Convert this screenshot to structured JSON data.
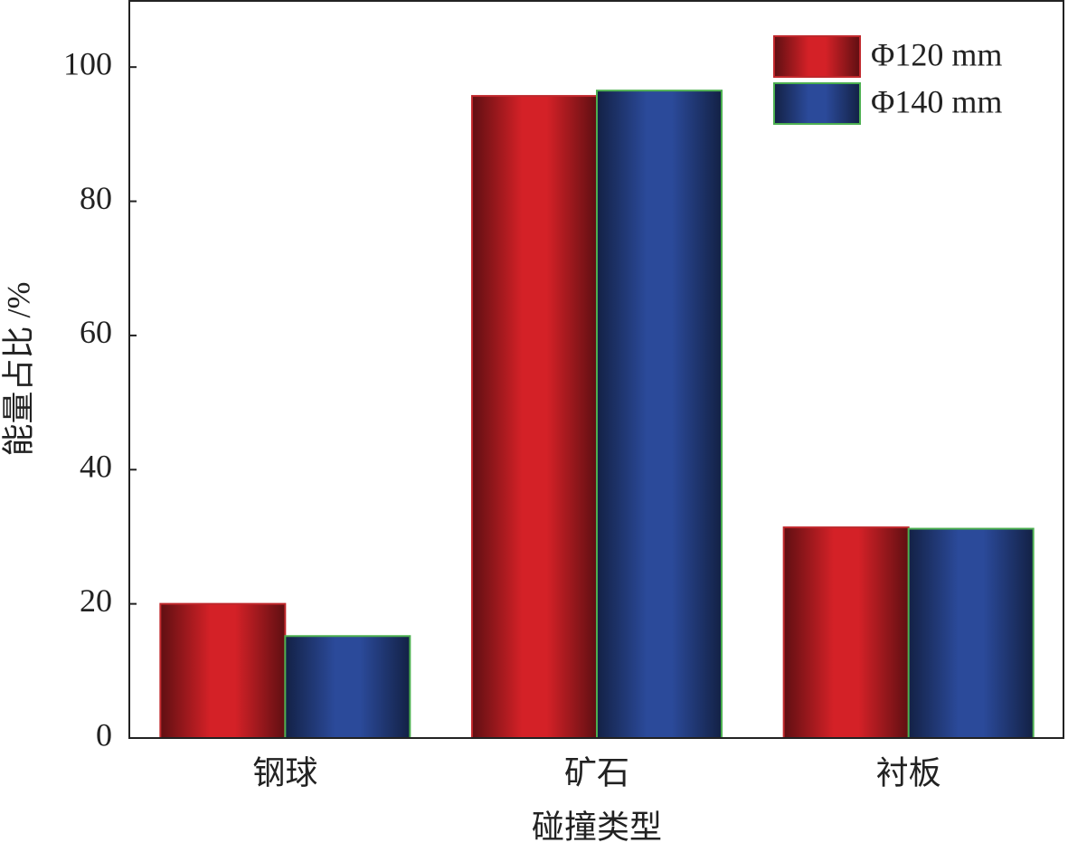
{
  "chart_data": {
    "type": "bar",
    "x_label": "碰撞类型",
    "y_label": "能量占比 /%",
    "categories": [
      "钢球",
      "矿石",
      "衬板"
    ],
    "series": [
      {
        "name": "Φ120 mm",
        "color": "#d42127",
        "edgecolor": "#c0282c",
        "values": [
          20,
          95.7,
          31.4
        ]
      },
      {
        "name": "Φ140 mm",
        "color": "#2b4a9a",
        "edgecolor": "#4caf50",
        "values": [
          15.2,
          96.5,
          31.2
        ]
      }
    ],
    "ylim": [
      0,
      110
    ],
    "yticks": [
      0,
      20,
      40,
      60,
      80,
      100
    ],
    "legend": "upper right"
  }
}
